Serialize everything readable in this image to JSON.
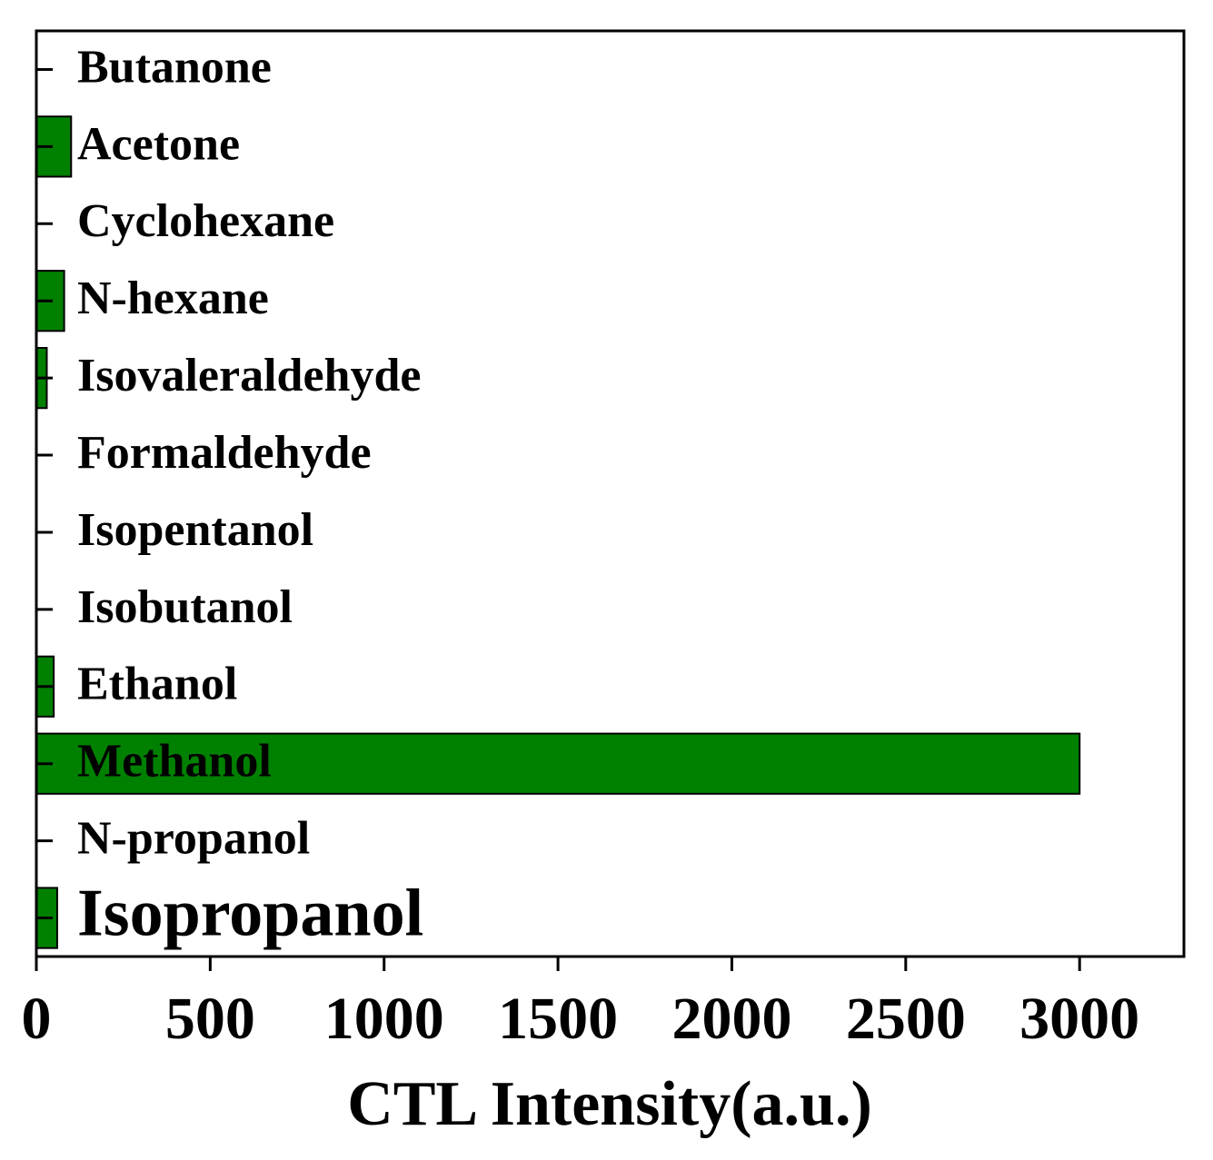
{
  "chart_data": {
    "type": "hbar",
    "xlabel": "CTL Intensity(a.u.)",
    "categories": [
      "Butanone",
      "Acetone",
      "Cyclohexane",
      "N-hexane",
      "Isovaleraldehyde",
      "Formaldehyde",
      "Isopentanol",
      "Isobutanol",
      "Ethanol",
      "Methanol",
      "N-propanol",
      "Isopropanol"
    ],
    "values": [
      0,
      100,
      0,
      80,
      30,
      0,
      0,
      0,
      50,
      3000,
      0,
      60
    ],
    "color": "#008000",
    "xlim": [
      0,
      3300
    ],
    "xticks": [
      0,
      500,
      1000,
      1500,
      2000,
      2500,
      3000
    ]
  }
}
